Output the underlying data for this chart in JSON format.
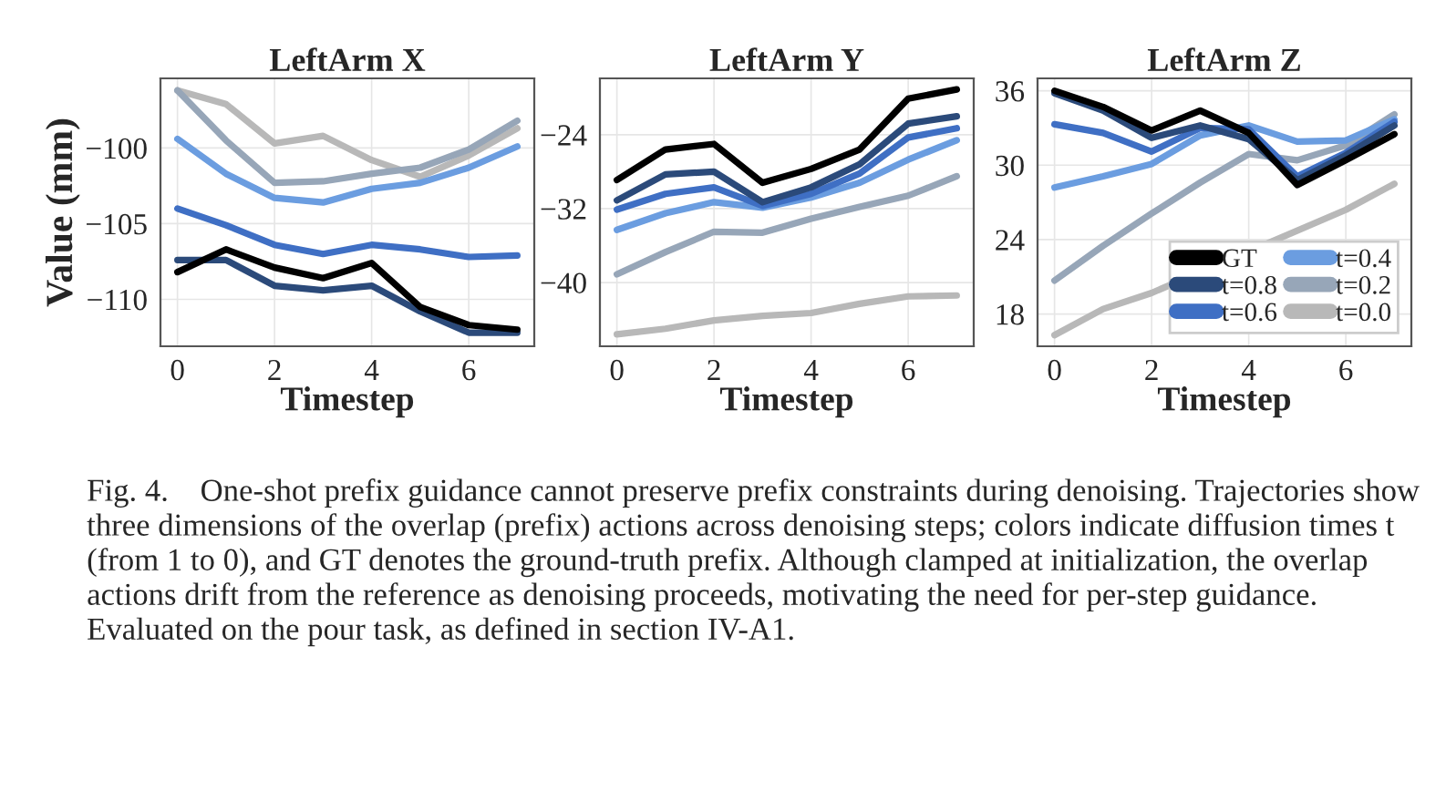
{
  "chart_data": [
    {
      "type": "line",
      "title": "LeftArm X",
      "xlabel": "Timestep",
      "ylabel": "Value (mm)",
      "x": [
        0,
        1,
        2,
        3,
        4,
        5,
        6,
        7
      ],
      "xlim": [
        -0.35,
        7.35
      ],
      "xticks": [
        0,
        2,
        4,
        6
      ],
      "ylim": [
        -113.1,
        -95.4
      ],
      "yticks": [
        {
          "value": -100,
          "label": "−100"
        },
        {
          "value": -105,
          "label": "−105"
        },
        {
          "value": -110,
          "label": "−110"
        }
      ],
      "grid": true,
      "series": [
        {
          "color": "#b8b8b8",
          "values": [
            -96.2,
            -97.1,
            -99.7,
            -99.2,
            -100.8,
            -101.9,
            -100.5,
            -98.7
          ]
        },
        {
          "color": "#97a6b8",
          "values": [
            -96.2,
            -99.5,
            -102.3,
            -102.2,
            -101.7,
            -101.3,
            -100.1,
            -98.2
          ]
        },
        {
          "color": "#6b9de0",
          "values": [
            -99.4,
            -101.7,
            -103.3,
            -103.6,
            -102.7,
            -102.3,
            -101.3,
            -99.9
          ]
        },
        {
          "color": "#3f6fc4",
          "values": [
            -104.0,
            -105.1,
            -106.4,
            -107.0,
            -106.4,
            -106.7,
            -107.2,
            -107.1
          ]
        },
        {
          "color": "#2b4a7a",
          "values": [
            -107.4,
            -107.4,
            -109.1,
            -109.4,
            -109.1,
            -110.8,
            -112.2,
            -112.2
          ]
        },
        {
          "color": "#000000",
          "values": [
            -108.2,
            -106.7,
            -107.9,
            -108.6,
            -107.6,
            -110.5,
            -111.7,
            -112.0
          ]
        }
      ],
      "annotations": [
        "Fig. 4.    One-shot prefix guidance cannot preserve prefix constraints during denoising. Trajectories show three dimensions of the overlap (prefix) actions across denoising steps; colors indicate diffusion times t (from 1 to 0), and GT denotes the ground-truth prefix. Although clamped at initialization, the overlap actions drift from the reference as denoising proceeds, motivating the need for per-step guidance. Evaluated on the pour task, as defined in section IV-A1."
      ]
    },
    {
      "type": "line",
      "title": "LeftArm Y",
      "xlabel": "Timestep",
      "x": [
        0,
        1,
        2,
        3,
        4,
        5,
        6,
        7
      ],
      "xlim": [
        -0.35,
        7.35
      ],
      "xticks": [
        0,
        2,
        4,
        6
      ],
      "ylim": [
        -46.9,
        -17.9
      ],
      "yticks": [
        {
          "value": -24,
          "label": "−24"
        },
        {
          "value": -32,
          "label": "−32"
        },
        {
          "value": -40,
          "label": "−40"
        }
      ],
      "grid": true,
      "series": [
        {
          "color": "#b8b8b8",
          "values": [
            -45.6,
            -45.0,
            -44.1,
            -43.6,
            -43.3,
            -42.3,
            -41.5,
            -41.4
          ]
        },
        {
          "color": "#97a6b8",
          "values": [
            -39.1,
            -36.7,
            -34.5,
            -34.6,
            -33.1,
            -31.8,
            -30.6,
            -28.5
          ]
        },
        {
          "color": "#6b9de0",
          "values": [
            -34.3,
            -32.5,
            -31.3,
            -31.9,
            -30.8,
            -29.2,
            -26.7,
            -24.6
          ]
        },
        {
          "color": "#3f6fc4",
          "values": [
            -32.1,
            -30.4,
            -29.7,
            -31.7,
            -30.4,
            -28.2,
            -24.3,
            -23.3
          ]
        },
        {
          "color": "#2b4a7a",
          "values": [
            -31.1,
            -28.3,
            -28.0,
            -31.3,
            -29.7,
            -27.2,
            -22.8,
            -22.0
          ]
        },
        {
          "color": "#000000",
          "values": [
            -28.9,
            -25.6,
            -25.0,
            -29.2,
            -27.7,
            -25.6,
            -20.1,
            -19.1
          ]
        }
      ]
    },
    {
      "type": "line",
      "title": "LeftArm Z",
      "xlabel": "Timestep",
      "x": [
        0,
        1,
        2,
        3,
        4,
        5,
        6,
        7
      ],
      "xlim": [
        -0.35,
        7.35
      ],
      "xticks": [
        0,
        2,
        4,
        6
      ],
      "ylim": [
        15.4,
        37.0
      ],
      "yticks": [
        18,
        24,
        30,
        36
      ],
      "grid": true,
      "legend": "bottom right",
      "series": [
        {
          "name": "t=0.0",
          "color": "#b8b8b8",
          "values": [
            16.3,
            18.4,
            19.7,
            null,
            null,
            null,
            26.4,
            28.5
          ]
        },
        {
          "name": "t=0.2",
          "color": "#97a6b8",
          "values": [
            20.7,
            23.5,
            26.1,
            28.6,
            30.9,
            30.4,
            31.6,
            34.1
          ]
        },
        {
          "name": "t=0.4",
          "color": "#6b9de0",
          "values": [
            28.2,
            29.1,
            30.1,
            32.4,
            33.2,
            31.9,
            32.0,
            33.7
          ]
        },
        {
          "name": "t=0.6",
          "color": "#3f6fc4",
          "values": [
            33.3,
            32.6,
            31.1,
            33.0,
            32.9,
            29.1,
            31.0,
            33.5
          ]
        },
        {
          "name": "t=0.8",
          "color": "#2b4a7a",
          "values": [
            35.8,
            34.4,
            32.2,
            33.2,
            32.1,
            28.8,
            30.8,
            33.2
          ]
        },
        {
          "name": "GT",
          "color": "#000000",
          "values": [
            36.0,
            34.7,
            32.8,
            34.4,
            32.6,
            28.4,
            30.4,
            32.5
          ]
        }
      ]
    }
  ]
}
